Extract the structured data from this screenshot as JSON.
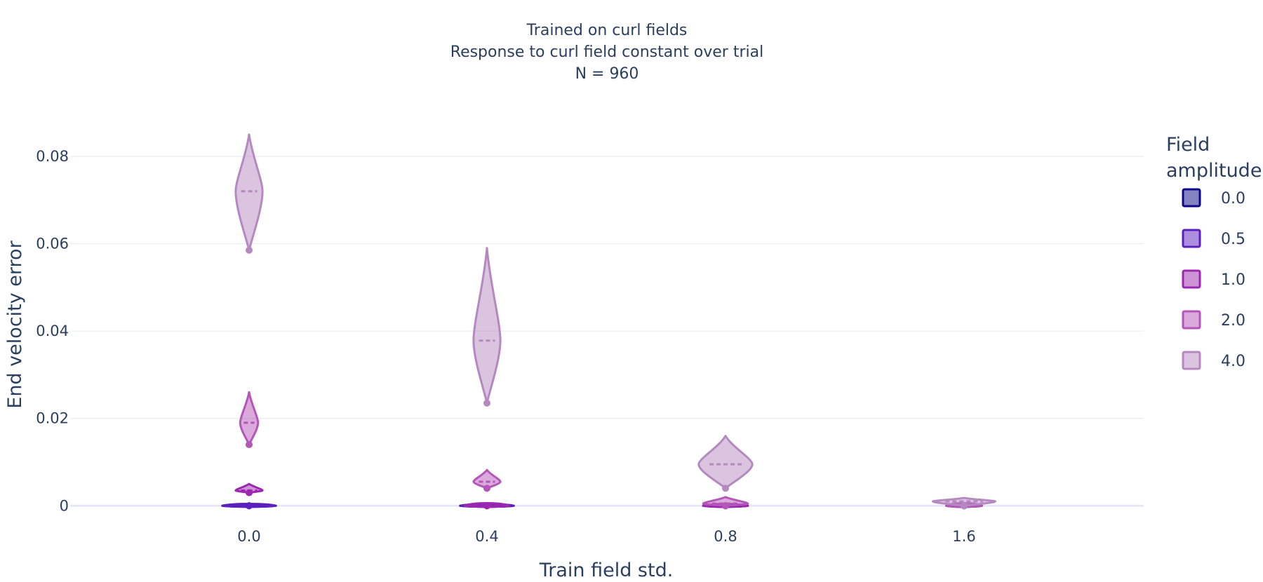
{
  "chart_data": {
    "type": "violin",
    "title_lines": [
      "Trained on curl fields",
      "Response to curl field constant over trial",
      "N = 960"
    ],
    "xlabel": "Train field std.",
    "ylabel": "End velocity error",
    "categories": [
      "0.0",
      "0.4",
      "0.8",
      "1.6"
    ],
    "y_ticks": [
      0,
      0.02,
      0.04,
      0.06,
      0.08
    ],
    "y_tick_labels": [
      "0",
      "0.02",
      "0.04",
      "0.06",
      "0.08"
    ],
    "ylim": [
      -0.0006,
      0.0885
    ],
    "grid": true,
    "legend": {
      "title_lines": [
        "Field",
        "amplitude"
      ],
      "placement": "right"
    },
    "series": [
      {
        "name": "0.0",
        "color": "#0d0887",
        "stats": [
          {
            "category": "0.0",
            "median": 0.0,
            "min": 0.0,
            "max": 0.0004,
            "spread": 0.06
          },
          {
            "category": "0.4",
            "median": 0.0,
            "min": 0.0,
            "max": 0.0002,
            "spread": 0.06
          },
          {
            "category": "0.8",
            "median": 0.0,
            "min": 0.0,
            "max": 0.0002,
            "spread": 0.05
          },
          {
            "category": "1.6",
            "median": 0.0,
            "min": 0.0,
            "max": 0.0002,
            "spread": 0.04
          }
        ]
      },
      {
        "name": "0.5",
        "color": "#5c1fc0",
        "stats": [
          {
            "category": "0.0",
            "median": 0.0001,
            "min": 0.0,
            "max": 0.0006,
            "spread": 0.06
          },
          {
            "category": "0.4",
            "median": 0.0001,
            "min": 0.0,
            "max": 0.0003,
            "spread": 0.06
          },
          {
            "category": "0.8",
            "median": 0.0001,
            "min": 0.0,
            "max": 0.0003,
            "spread": 0.05
          },
          {
            "category": "1.6",
            "median": 0.0001,
            "min": 0.0,
            "max": 0.0003,
            "spread": 0.04
          }
        ]
      },
      {
        "name": "1.0",
        "color": "#9c27b0",
        "stats": [
          {
            "category": "0.0",
            "median": 0.0035,
            "min": 0.003,
            "max": 0.005,
            "spread": 0.03
          },
          {
            "category": "0.4",
            "median": 0.0003,
            "min": 0.0,
            "max": 0.0008,
            "spread": 0.05
          },
          {
            "category": "0.8",
            "median": 0.0001,
            "min": 0.0,
            "max": 0.0004,
            "spread": 0.05
          },
          {
            "category": "1.6",
            "median": 0.0001,
            "min": 0.0,
            "max": 0.0003,
            "spread": 0.04
          }
        ]
      },
      {
        "name": "2.0",
        "color": "#b456b8",
        "stats": [
          {
            "category": "0.0",
            "median": 0.019,
            "min": 0.014,
            "max": 0.026,
            "spread": 0.02
          },
          {
            "category": "0.4",
            "median": 0.0055,
            "min": 0.004,
            "max": 0.0082,
            "spread": 0.03
          },
          {
            "category": "0.8",
            "median": 0.0005,
            "min": 0.0,
            "max": 0.002,
            "spread": 0.05
          },
          {
            "category": "1.6",
            "median": 0.0002,
            "min": 0.0,
            "max": 0.0008,
            "spread": 0.04
          }
        ]
      },
      {
        "name": "4.0",
        "color": "#b589c0",
        "stats": [
          {
            "category": "0.0",
            "median": 0.072,
            "min": 0.0585,
            "max": 0.085,
            "spread": 0.03
          },
          {
            "category": "0.4",
            "median": 0.0378,
            "min": 0.0235,
            "max": 0.059,
            "spread": 0.03
          },
          {
            "category": "0.8",
            "median": 0.0095,
            "min": 0.004,
            "max": 0.016,
            "spread": 0.06
          },
          {
            "category": "1.6",
            "median": 0.001,
            "min": 0.0,
            "max": 0.0018,
            "spread": 0.07
          }
        ]
      }
    ]
  }
}
